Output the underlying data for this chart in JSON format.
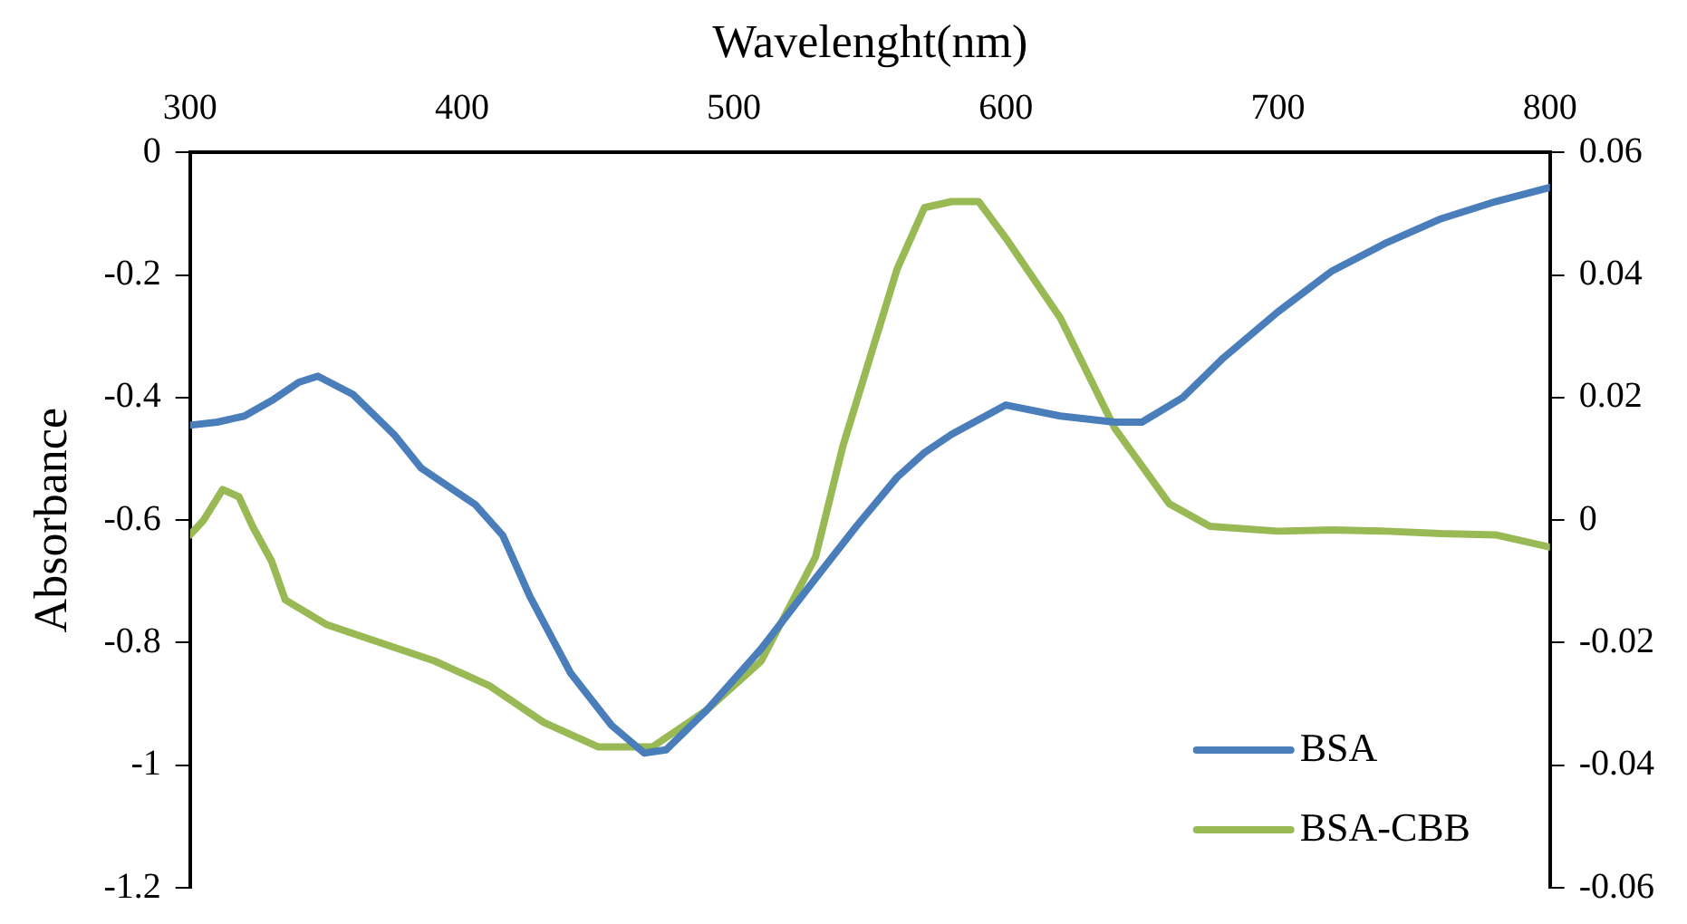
{
  "chart_data": {
    "type": "line",
    "xlabel": "Wavelenght(nm)",
    "ylabel": "Absorbance",
    "xlim": [
      300,
      800
    ],
    "xticks": [
      300,
      400,
      500,
      600,
      700,
      800
    ],
    "ylim": [
      -1.2,
      0
    ],
    "yticks": [
      0,
      -0.2,
      -0.4,
      -0.6,
      -0.8,
      -1,
      -1.2
    ],
    "y2lim": [
      -0.06,
      0.06
    ],
    "y2ticks": [
      0.06,
      0.04,
      0.02,
      0,
      -0.02,
      -0.04,
      -0.06
    ],
    "grid": false,
    "legend": "bottom right",
    "marker": "none",
    "line_style": "solid",
    "series": [
      {
        "name": "BSA",
        "color": "#4a7ebb",
        "x": [
          300,
          310,
          320,
          330,
          340,
          347,
          360,
          375,
          385,
          395,
          405,
          415,
          425,
          440,
          455,
          467,
          475,
          490,
          510,
          530,
          545,
          560,
          570,
          580,
          600,
          620,
          640,
          650,
          665,
          680,
          700,
          720,
          740,
          760,
          780,
          800
        ],
        "values": [
          -0.445,
          -0.44,
          -0.43,
          -0.405,
          -0.375,
          -0.365,
          -0.395,
          -0.46,
          -0.515,
          -0.545,
          -0.575,
          -0.625,
          -0.725,
          -0.85,
          -0.935,
          -0.98,
          -0.975,
          -0.91,
          -0.81,
          -0.695,
          -0.61,
          -0.53,
          -0.49,
          -0.46,
          -0.412,
          -0.43,
          -0.44,
          -0.44,
          -0.4,
          -0.335,
          -0.26,
          -0.193,
          -0.147,
          -0.108,
          -0.08,
          -0.057
        ]
      },
      {
        "name": "BSA-CBB",
        "color": "#98b954",
        "axis": "y2",
        "x": [
          300,
          305,
          312,
          318,
          323,
          330,
          335,
          350,
          370,
          390,
          410,
          430,
          450,
          470,
          490,
          510,
          530,
          540,
          550,
          560,
          570,
          580,
          590,
          600,
          620,
          640,
          660,
          675,
          700,
          720,
          740,
          760,
          780,
          800
        ],
        "values": [
          -0.0024,
          0,
          0.005,
          0.0038,
          -0.001,
          -0.0067,
          -0.013,
          -0.017,
          -0.02,
          -0.023,
          -0.027,
          -0.033,
          -0.037,
          -0.037,
          -0.031,
          -0.023,
          -0.006,
          0.012,
          0.0265,
          0.041,
          0.051,
          0.052,
          0.052,
          0.046,
          0.033,
          0.015,
          0.0027,
          -0.001,
          -0.0018,
          -0.0016,
          -0.0018,
          -0.0022,
          -0.0024,
          -0.0044
        ]
      }
    ]
  }
}
